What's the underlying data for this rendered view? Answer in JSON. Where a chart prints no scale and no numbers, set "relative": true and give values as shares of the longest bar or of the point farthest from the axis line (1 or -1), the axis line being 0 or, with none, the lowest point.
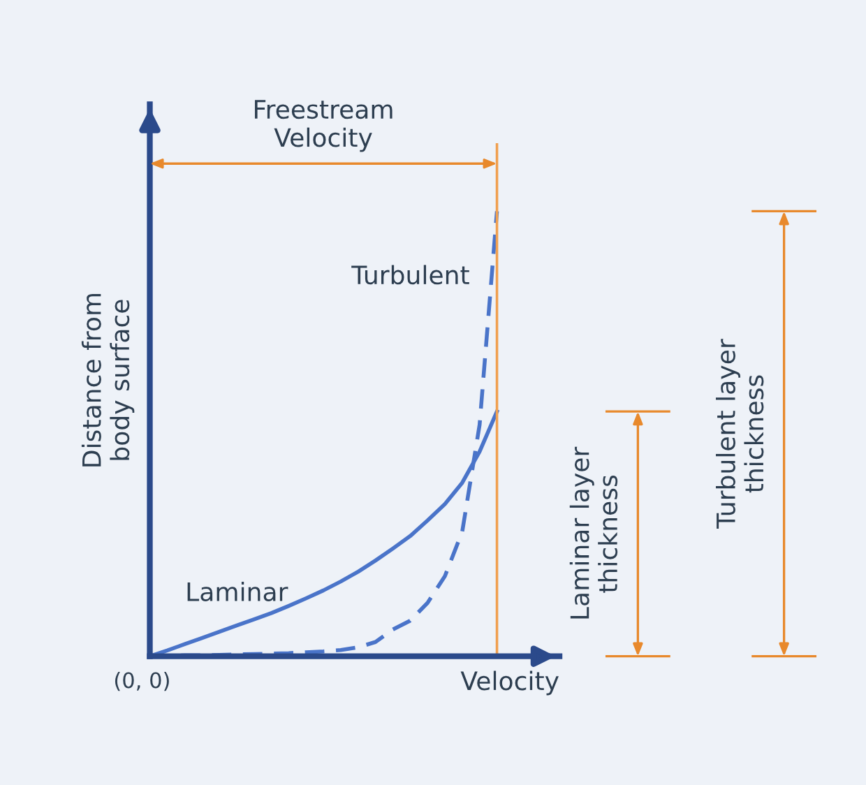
{
  "chart_data": {
    "type": "line",
    "relative": true,
    "xlabel": "Velocity",
    "ylabel": "Distance from\nbody surface",
    "legend": false,
    "categories": [
      null,
      null,
      null,
      null,
      null,
      null,
      null,
      null,
      null,
      null,
      null,
      null,
      null,
      null,
      null,
      null,
      null,
      null,
      null,
      null,
      null
    ],
    "series": [
      {
        "name": "Laminar",
        "color": "#4a74c9",
        "line_style": "solid",
        "values": [
          0,
          0.013,
          0.027,
          0.041,
          0.055,
          0.069,
          0.083,
          0.097,
          0.113,
          0.13,
          0.148,
          0.168,
          0.19,
          0.215,
          0.242,
          0.27,
          0.305,
          0.342,
          0.39,
          0.46,
          0.55
        ]
      },
      {
        "name": "Turbulent",
        "color": "#4a74c9",
        "line_style": "dashed",
        "values": [
          0,
          0.001,
          0.002,
          0.002,
          0.003,
          0.004,
          0.005,
          0.006,
          0.007,
          0.009,
          0.011,
          0.014,
          0.02,
          0.032,
          0.06,
          0.08,
          0.12,
          0.18,
          0.28,
          0.52,
          1
        ]
      }
    ],
    "annotations": [
      "(0, 0)",
      "Freestream\nVelocity",
      "Laminar layer\nthickness",
      "Turbulent layer\nthickness"
    ]
  }
}
